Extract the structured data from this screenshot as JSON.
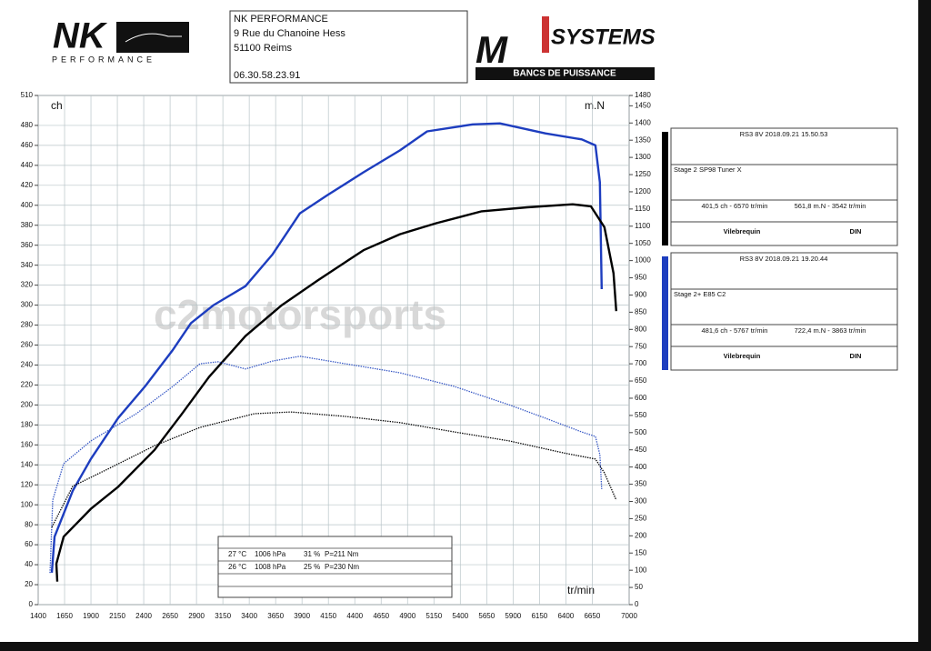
{
  "header": {
    "logo_left": {
      "mark": "NK",
      "sub": "PERFORMANCE"
    },
    "address": [
      "NK PERFORMANCE",
      "9 Rue du Chanoine Hess",
      "51100 Reims",
      "06.30.58.23.91"
    ],
    "logo_right": {
      "mark": "M",
      "name": "SYSTEMS",
      "sub": "BANCS DE PUISSANCE"
    }
  },
  "watermark": "c2motorsports",
  "chart_data": {
    "type": "line",
    "y_label": "ch",
    "y2_label": "m.N",
    "x_label": "tr/min",
    "xlim": [
      1400,
      7000
    ],
    "xticks": [
      1400,
      1650,
      1900,
      2150,
      2400,
      2650,
      2900,
      3150,
      3400,
      3650,
      3900,
      4150,
      4400,
      4650,
      4900,
      5150,
      5400,
      5650,
      5900,
      6150,
      6400,
      6650,
      7000
    ],
    "ylim": [
      0,
      510
    ],
    "yticks": [
      0,
      20,
      40,
      60,
      80,
      100,
      120,
      140,
      160,
      180,
      200,
      220,
      240,
      260,
      280,
      300,
      320,
      340,
      360,
      380,
      400,
      420,
      440,
      460,
      480,
      510
    ],
    "y2lim": [
      0,
      1480
    ],
    "y2ticks": [
      0,
      50,
      100,
      150,
      200,
      250,
      300,
      350,
      400,
      450,
      500,
      550,
      600,
      650,
      700,
      750,
      800,
      850,
      900,
      950,
      1000,
      1050,
      1100,
      1150,
      1200,
      1250,
      1300,
      1350,
      1400,
      1450,
      1480
    ],
    "grid": true,
    "series": [
      {
        "color": "#1d3dbf",
        "style": "solid",
        "x": [
          1529,
          1555,
          1727,
          1900,
          2158,
          2416,
          2675,
          2847,
          3062,
          3364,
          3622,
          3880,
          4139,
          4483,
          4828,
          5086,
          5517,
          5775,
          6206,
          6551,
          6680,
          6723,
          6740
        ],
        "values": [
          32,
          68,
          114,
          146,
          187,
          219,
          255,
          282,
          300,
          319,
          351,
          392,
          410,
          433,
          455,
          474,
          481,
          482,
          472,
          466,
          460,
          423,
          316
        ]
      },
      {
        "color": "#000000",
        "style": "solid",
        "x": [
          1581,
          1572,
          1641,
          1900,
          2158,
          2503,
          2761,
          3019,
          3364,
          3709,
          4053,
          4483,
          4828,
          5172,
          5603,
          6034,
          6464,
          6637,
          6766,
          6852,
          6878
        ],
        "values": [
          23,
          41,
          68,
          96,
          118,
          155,
          191,
          228,
          269,
          300,
          325,
          355,
          371,
          382,
          394,
          398,
          401,
          399,
          378,
          332,
          294
        ]
      },
      {
        "color": "#3355c4",
        "style": "dotted",
        "axis": "y2",
        "x": [
          1512,
          1538,
          1641,
          1900,
          2330,
          2675,
          2933,
          3106,
          3364,
          3622,
          3880,
          4311,
          4828,
          5345,
          5862,
          6206,
          6551,
          6680,
          6723,
          6740
        ],
        "values": [
          92,
          304,
          410,
          476,
          555,
          634,
          700,
          706,
          685,
          708,
          722,
          700,
          674,
          634,
          581,
          542,
          502,
          489,
          436,
          336
        ]
      },
      {
        "color": "#000000",
        "style": "dotted",
        "axis": "y2",
        "x": [
          1529,
          1727,
          2072,
          2503,
          2933,
          3450,
          3794,
          4311,
          4828,
          5345,
          5862,
          6378,
          6680,
          6766,
          6878
        ],
        "values": [
          225,
          344,
          396,
          462,
          515,
          555,
          560,
          547,
          529,
          502,
          476,
          441,
          423,
          383,
          304
        ]
      }
    ]
  },
  "results": [
    {
      "color": "#000000",
      "run": "RS3 8V   2018.09.21 15.50.53",
      "stage": "Stage 2 SP98 Tuner X",
      "power": "401,5 ch - 6570 tr/min",
      "torque": "561,8 m.N - 3542 tr/min",
      "left": "Vilebrequin",
      "right": "DIN"
    },
    {
      "color": "#1d3dbf",
      "run": "RS3 8V   2018.09.21 19.20.44",
      "stage": "Stage 2+ E85 C2",
      "power": "481,6 ch - 5767 tr/min",
      "torque": "722,4 m.N - 3863 tr/min",
      "left": "Vilebrequin",
      "right": "DIN"
    }
  ],
  "conditions": [
    [
      "27 °C",
      "1006 hPa",
      "31 %",
      "P=211 Nm"
    ],
    [
      "26 °C",
      "1008 hPa",
      "25 %",
      "P=230 Nm"
    ]
  ]
}
